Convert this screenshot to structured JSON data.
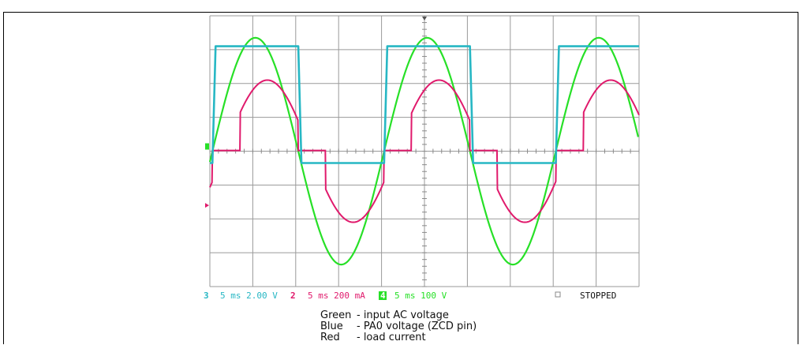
{
  "chart_data": {
    "type": "line",
    "title": "",
    "x": {
      "unit": "ms",
      "range": [
        0,
        50
      ],
      "divisions": 10,
      "ms_per_div": 5
    },
    "grid": true,
    "series": [
      {
        "name": "input AC voltage",
        "color": "#27e027",
        "type": "sine",
        "period_ms": 20,
        "zero_crossings_rising_ms": [
          0.3,
          20.3,
          40.3
        ],
        "peak_divisions": 3.35
      },
      {
        "name": "PA0 voltage (ZCD pin)",
        "color": "#27b7c4",
        "type": "square",
        "high_divisions": 3.1,
        "low_divisions": -0.35,
        "high_intervals_ms": [
          [
            0.3,
            10.3
          ],
          [
            20.3,
            30.3
          ],
          [
            40.3,
            50
          ]
        ]
      },
      {
        "name": "load current",
        "color": "#e01a6c",
        "type": "phase-cut",
        "peak_divisions": 2.1,
        "zero_crossings_rising_ms": [
          0.3,
          20.3,
          40.3
        ]
      }
    ]
  },
  "status_bar": {
    "ch3_number": "3",
    "ch3_text": "5 ms 2.00 V",
    "ch2_number": "2",
    "ch2_text": "5 ms 200 mA",
    "ch4_number": "4",
    "ch4_text": "5 ms 100 V",
    "state": "STOPPED",
    "ch3_color": "#27b7c4",
    "ch2_color": "#e01a6c",
    "ch4_color": "#27e027"
  },
  "legend": {
    "green_label": "Green",
    "green_text": "- input AC voltage",
    "blue_label": "Blue",
    "blue_text": "- PA0 voltage (ZCD pin)",
    "red_label": "Red",
    "red_text": "- load current"
  }
}
